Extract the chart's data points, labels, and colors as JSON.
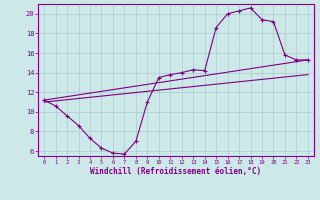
{
  "xlabel": "Windchill (Refroidissement éolien,°C)",
  "bg_color": "#cde8e8",
  "line_color": "#800080",
  "grid_color": "#aacccc",
  "axis_color": "#800080",
  "tick_label_color": "#800080",
  "xlim": [
    -0.5,
    23.5
  ],
  "ylim": [
    5.5,
    21.0
  ],
  "xticks": [
    0,
    1,
    2,
    3,
    4,
    5,
    6,
    7,
    8,
    9,
    10,
    11,
    12,
    13,
    14,
    15,
    16,
    17,
    18,
    19,
    20,
    21,
    22,
    23
  ],
  "yticks": [
    6,
    8,
    10,
    12,
    14,
    16,
    18,
    20
  ],
  "main_line_x": [
    0,
    1,
    2,
    3,
    4,
    5,
    6,
    7,
    8,
    9,
    10,
    11,
    12,
    13,
    14,
    15,
    16,
    17,
    18,
    19,
    20,
    21,
    22,
    23
  ],
  "main_line_y": [
    11.2,
    10.6,
    9.6,
    8.6,
    7.3,
    6.3,
    5.8,
    5.7,
    7.0,
    11.0,
    13.5,
    13.8,
    14.0,
    14.3,
    14.2,
    18.6,
    20.0,
    20.3,
    20.6,
    19.4,
    19.2,
    15.8,
    15.3,
    15.3
  ],
  "upper_line_x": [
    0,
    23
  ],
  "upper_line_y": [
    11.2,
    15.3
  ],
  "lower_line_x": [
    0,
    23
  ],
  "lower_line_y": [
    11.0,
    13.8
  ]
}
